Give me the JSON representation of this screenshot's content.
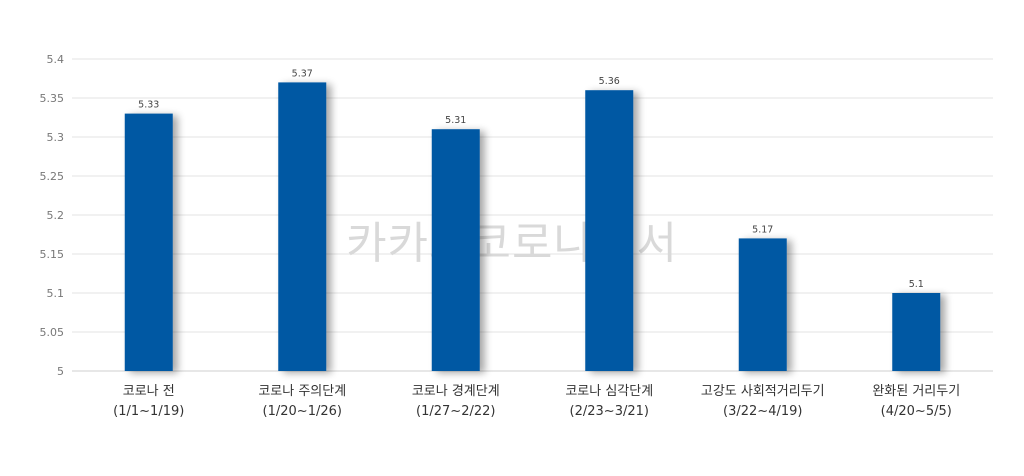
{
  "chart_data": {
    "type": "bar",
    "categories": [
      [
        "코로나 전",
        "(1/1~1/19)"
      ],
      [
        "코로나 주의단계",
        "(1/20~1/26)"
      ],
      [
        "코로나 경계단계",
        "(1/27~2/22)"
      ],
      [
        "코로나 심각단계",
        "(2/23~3/21)"
      ],
      [
        "고강도 사회적거리두기",
        "(3/22~4/19)"
      ],
      [
        "완화된 거리두기",
        "(4/20~5/5)"
      ]
    ],
    "values": [
      5.33,
      5.37,
      5.31,
      5.36,
      5.17,
      5.1
    ],
    "data_labels": [
      "5.33",
      "5.37",
      "5.31",
      "5.36",
      "5.17",
      "5.1"
    ],
    "y_ticks": [
      "5",
      "5.05",
      "5.1",
      "5.15",
      "5.2",
      "5.25",
      "5.3",
      "5.35",
      "5.4"
    ],
    "ylim": [
      5,
      5.4
    ],
    "grid": true,
    "bar_color": "#0059a3",
    "grid_color": "#e3e3e3",
    "watermark": "카카오코로나백서"
  }
}
